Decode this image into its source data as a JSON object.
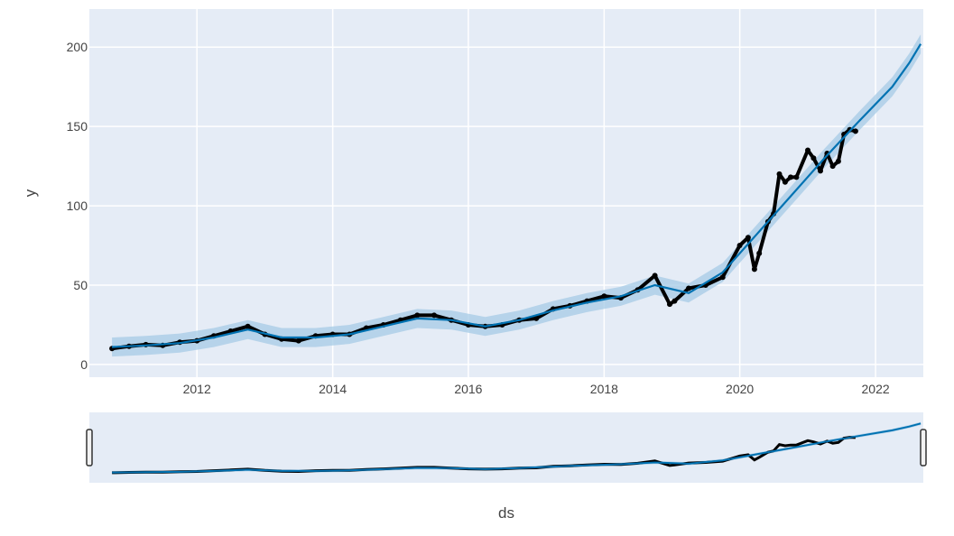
{
  "chart_data": {
    "type": "line",
    "xlabel": "ds",
    "ylabel": "y",
    "xlim": [
      "2010-06-01",
      "2022-09-15"
    ],
    "ylim": [
      -8,
      224
    ],
    "x_ticks": [
      "2012",
      "2014",
      "2016",
      "2018",
      "2020",
      "2022"
    ],
    "y_ticks": [
      "0",
      "50",
      "100",
      "150",
      "200"
    ],
    "grid": true,
    "legend": "none",
    "rangeslider": true,
    "colors": {
      "plot_bg": "#e5ecf6",
      "grid": "#ffffff",
      "forecast_line": "#0072b2",
      "uncertainty_band": "#a6cbe6",
      "actual_points": "#000000"
    },
    "series": [
      {
        "kind": "actual_points",
        "x": [
          "2010-10-01",
          "2011-01-01",
          "2011-04-01",
          "2011-07-01",
          "2011-10-01",
          "2012-01-01",
          "2012-04-01",
          "2012-07-01",
          "2012-10-01",
          "2013-01-01",
          "2013-04-01",
          "2013-07-01",
          "2013-10-01",
          "2014-01-01",
          "2014-04-01",
          "2014-07-01",
          "2014-10-01",
          "2015-01-01",
          "2015-04-01",
          "2015-07-01",
          "2015-10-01",
          "2016-01-01",
          "2016-04-01",
          "2016-07-01",
          "2016-10-01",
          "2017-01-01",
          "2017-04-01",
          "2017-07-01",
          "2017-10-01",
          "2018-01-01",
          "2018-04-01",
          "2018-07-01",
          "2018-10-01",
          "2018-12-20",
          "2019-01-15",
          "2019-04-01",
          "2019-07-01",
          "2019-10-01",
          "2020-01-01",
          "2020-02-15",
          "2020-03-20",
          "2020-04-15",
          "2020-06-01",
          "2020-07-01",
          "2020-08-01",
          "2020-09-01",
          "2020-10-01",
          "2020-11-01",
          "2021-01-01",
          "2021-02-01",
          "2021-03-10",
          "2021-04-15",
          "2021-05-15",
          "2021-06-15",
          "2021-07-15",
          "2021-08-15",
          "2021-09-15"
        ],
        "y": [
          10,
          11.5,
          12.5,
          12,
          14,
          15,
          18,
          21,
          24,
          19,
          16,
          15,
          18,
          19,
          19,
          23,
          25,
          28,
          31,
          31,
          28,
          25,
          24,
          25,
          28,
          29,
          35,
          37,
          40,
          43,
          42,
          47,
          56,
          38,
          40,
          48,
          50,
          55,
          75,
          80,
          60,
          70,
          90,
          95,
          120,
          115,
          118,
          118,
          135,
          130,
          122,
          133,
          125,
          128,
          145,
          148,
          147
        ]
      },
      {
        "kind": "forecast",
        "x": [
          "2010-10-01",
          "2011-04-01",
          "2011-10-01",
          "2012-04-01",
          "2012-10-01",
          "2013-04-01",
          "2013-10-01",
          "2014-04-01",
          "2014-10-01",
          "2015-04-01",
          "2015-10-01",
          "2016-04-01",
          "2016-10-01",
          "2017-04-01",
          "2017-10-01",
          "2018-04-01",
          "2018-10-01",
          "2019-04-01",
          "2019-10-01",
          "2020-04-01",
          "2020-10-01",
          "2021-04-01",
          "2021-10-01",
          "2022-04-01",
          "2022-07-01",
          "2022-09-01"
        ],
        "y": [
          11,
          12,
          13.5,
          17,
          22,
          17,
          17,
          19,
          24,
          29,
          28,
          24,
          28,
          34,
          39,
          43,
          50,
          45,
          58,
          82,
          106,
          130,
          153,
          175,
          190,
          202
        ]
      }
    ],
    "uncertainty_half_width": 6
  }
}
